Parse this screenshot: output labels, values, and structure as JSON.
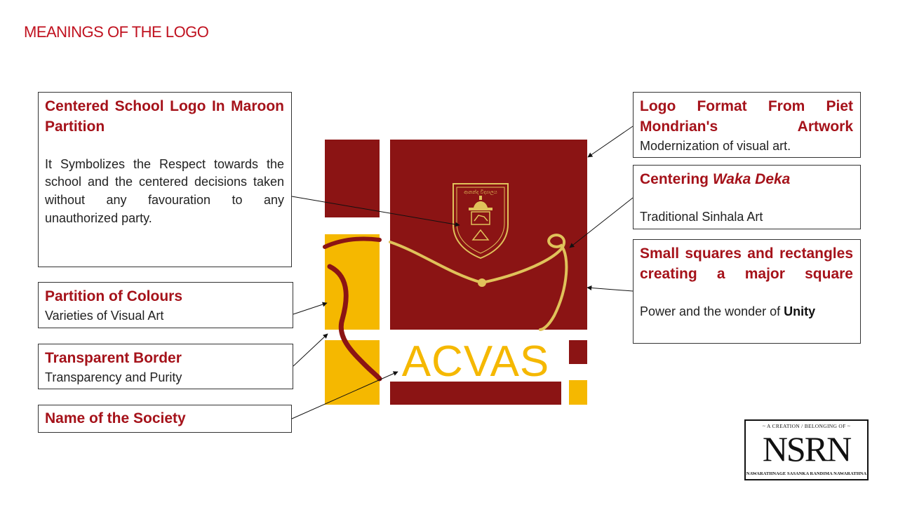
{
  "slide": {
    "title": "MEANINGS OF THE LOGO"
  },
  "callouts": {
    "school_logo": {
      "heading": "Centered School Logo In Maroon Partition",
      "body": "It Symbolizes the Respect towards the school and the centered decisions taken without any favouration to any unauthorized party."
    },
    "partition": {
      "heading": "Partition of Colours",
      "body": "Varieties of Visual Art"
    },
    "border": {
      "heading": "Transparent Border",
      "body": "Transparency and Purity"
    },
    "name": {
      "heading": "Name of the Society"
    },
    "mondrian": {
      "heading": "Logo Format From Piet Mondrian's Artwork",
      "body": "Modernization of visual art."
    },
    "waka_deka": {
      "heading_prefix": "Centering ",
      "heading_emphasis": "Waka Deka",
      "body": "Traditional Sinhala Art"
    },
    "squares": {
      "heading": "Small squares and rectangles creating a major square",
      "body_prefix": "Power and the wonder of ",
      "body_emphasis": "Unity"
    }
  },
  "logo": {
    "society_name": "ACVAS",
    "crest_text": "ආනන්ද විද්‍යාලය",
    "colors": {
      "maroon": "#8b1414",
      "yellow": "#f5b800",
      "gold": "#e0c25a"
    }
  },
  "signature": {
    "top_text": "~ A CREATION / BELONGING OF ~",
    "monogram": "NSRN",
    "bottom_text": "NAWARATHNAGE SASANKA RANDIMA NAWARATHNA"
  }
}
